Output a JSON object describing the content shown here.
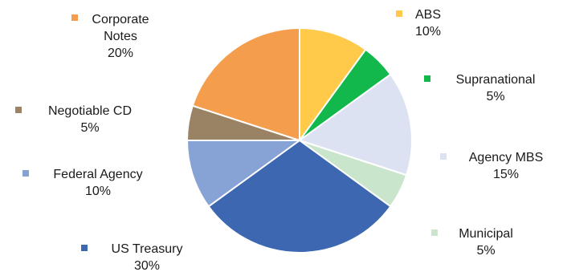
{
  "chart_data": {
    "type": "pie",
    "slices": [
      {
        "label": "ABS",
        "value": 10,
        "pct_text": "10%",
        "color": "#FFC94A"
      },
      {
        "label": "Supranational",
        "value": 5,
        "pct_text": "5%",
        "color": "#12B84B"
      },
      {
        "label": "Agency MBS",
        "value": 15,
        "pct_text": "15%",
        "color": "#DCE2F1"
      },
      {
        "label": "Municipal",
        "value": 5,
        "pct_text": "5%",
        "color": "#C9E6CC"
      },
      {
        "label": "US Treasury",
        "value": 30,
        "pct_text": "30%",
        "color": "#3D67B1"
      },
      {
        "label": "Federal Agency",
        "value": 10,
        "pct_text": "10%",
        "color": "#87A3D6"
      },
      {
        "label": "Negotiable CD",
        "value": 5,
        "pct_text": "5%",
        "color": "#9A8264"
      },
      {
        "label": "Corporate Notes",
        "value": 20,
        "pct_text": "20%",
        "color": "#F49D4D"
      }
    ]
  }
}
